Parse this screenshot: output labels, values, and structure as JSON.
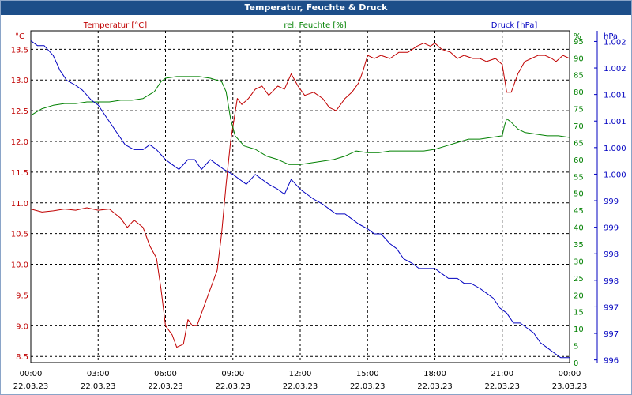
{
  "window": {
    "title": "Temperatur, Feuchte & Druck"
  },
  "chart_data": {
    "type": "line",
    "title": "Temperatur, Feuchte & Druck",
    "grid": true,
    "x_ticks": [
      {
        "time": "00:00",
        "date": "22.03.23"
      },
      {
        "time": "03:00",
        "date": "22.03.23"
      },
      {
        "time": "06:00",
        "date": "22.03.23"
      },
      {
        "time": "09:00",
        "date": "22.03.23"
      },
      {
        "time": "12:00",
        "date": "22.03.23"
      },
      {
        "time": "15:00",
        "date": "22.03.23"
      },
      {
        "time": "18:00",
        "date": "22.03.23"
      },
      {
        "time": "21:00",
        "date": "22.03.23"
      },
      {
        "time": "00:00",
        "date": "23.03.23"
      }
    ],
    "x_hours": [
      0,
      24
    ],
    "axes": {
      "temperature": {
        "label": "Temperatur [°C]",
        "unit": "°C",
        "color": "#c00000",
        "ylim": [
          8.4,
          13.8
        ],
        "ticks": [
          "8.5",
          "9.0",
          "9.5",
          "10.0",
          "10.5",
          "11.0",
          "11.5",
          "12.0",
          "12.5",
          "13.0",
          "13.5"
        ]
      },
      "humidity": {
        "label": "rel. Feuchte [%]",
        "unit": "%",
        "color": "#008000",
        "ylim": [
          0,
          98
        ],
        "ticks": [
          "0",
          "5",
          "10",
          "15",
          "20",
          "25",
          "30",
          "35",
          "40",
          "45",
          "50",
          "55",
          "60",
          "65",
          "70",
          "75",
          "80",
          "85",
          "90",
          "95"
        ]
      },
      "pressure": {
        "label": "Druck [hPa]",
        "unit": "hPa",
        "color": "#0000c0",
        "ylim": [
          995.9,
          1002.6
        ],
        "ticks": [
          "996",
          "997",
          "997",
          "998",
          "998",
          "999",
          "999",
          "1.000",
          "1.000",
          "1.001",
          "1.001",
          "1.002",
          "1.002"
        ]
      }
    },
    "series": [
      {
        "name": "Temperatur [°C]",
        "axis": "temperature",
        "color": "#c00000",
        "points": [
          [
            0,
            10.9
          ],
          [
            0.5,
            10.85
          ],
          [
            1,
            10.87
          ],
          [
            1.5,
            10.9
          ],
          [
            2,
            10.88
          ],
          [
            2.5,
            10.92
          ],
          [
            3,
            10.88
          ],
          [
            3.5,
            10.9
          ],
          [
            4,
            10.75
          ],
          [
            4.3,
            10.6
          ],
          [
            4.6,
            10.72
          ],
          [
            5,
            10.6
          ],
          [
            5.3,
            10.3
          ],
          [
            5.6,
            10.1
          ],
          [
            5.8,
            9.6
          ],
          [
            6,
            9.0
          ],
          [
            6.3,
            8.85
          ],
          [
            6.5,
            8.65
          ],
          [
            6.8,
            8.7
          ],
          [
            7,
            9.1
          ],
          [
            7.2,
            9.0
          ],
          [
            7.4,
            9.0
          ],
          [
            7.7,
            9.3
          ],
          [
            8,
            9.6
          ],
          [
            8.3,
            9.9
          ],
          [
            8.5,
            10.5
          ],
          [
            8.7,
            11.3
          ],
          [
            8.9,
            12.0
          ],
          [
            9.2,
            12.7
          ],
          [
            9.4,
            12.6
          ],
          [
            9.7,
            12.7
          ],
          [
            10,
            12.85
          ],
          [
            10.3,
            12.9
          ],
          [
            10.6,
            12.75
          ],
          [
            11,
            12.9
          ],
          [
            11.3,
            12.85
          ],
          [
            11.6,
            13.1
          ],
          [
            11.9,
            12.9
          ],
          [
            12.2,
            12.75
          ],
          [
            12.6,
            12.8
          ],
          [
            13,
            12.7
          ],
          [
            13.3,
            12.55
          ],
          [
            13.6,
            12.5
          ],
          [
            14,
            12.7
          ],
          [
            14.3,
            12.8
          ],
          [
            14.6,
            12.95
          ],
          [
            14.8,
            13.15
          ],
          [
            15,
            13.4
          ],
          [
            15.3,
            13.35
          ],
          [
            15.6,
            13.4
          ],
          [
            16,
            13.35
          ],
          [
            16.4,
            13.45
          ],
          [
            16.8,
            13.45
          ],
          [
            17.2,
            13.55
          ],
          [
            17.5,
            13.6
          ],
          [
            17.8,
            13.55
          ],
          [
            18,
            13.6
          ],
          [
            18.3,
            13.5
          ],
          [
            18.7,
            13.45
          ],
          [
            19,
            13.35
          ],
          [
            19.3,
            13.4
          ],
          [
            19.7,
            13.35
          ],
          [
            20,
            13.35
          ],
          [
            20.3,
            13.3
          ],
          [
            20.7,
            13.35
          ],
          [
            21,
            13.25
          ],
          [
            21.2,
            12.8
          ],
          [
            21.4,
            12.8
          ],
          [
            21.7,
            13.1
          ],
          [
            22,
            13.3
          ],
          [
            22.3,
            13.35
          ],
          [
            22.6,
            13.4
          ],
          [
            22.9,
            13.4
          ],
          [
            23.2,
            13.35
          ],
          [
            23.4,
            13.3
          ],
          [
            23.7,
            13.4
          ],
          [
            24,
            13.35
          ]
        ]
      },
      {
        "name": "rel. Feuchte [%]",
        "axis": "humidity",
        "color": "#008000",
        "points": [
          [
            0,
            73
          ],
          [
            0.5,
            75
          ],
          [
            1,
            76
          ],
          [
            1.5,
            76.5
          ],
          [
            2,
            76.5
          ],
          [
            2.5,
            77
          ],
          [
            3,
            77
          ],
          [
            3.5,
            77
          ],
          [
            4,
            77.5
          ],
          [
            4.5,
            77.5
          ],
          [
            5,
            78
          ],
          [
            5.5,
            80
          ],
          [
            5.8,
            83
          ],
          [
            6,
            84
          ],
          [
            6.5,
            84.5
          ],
          [
            7,
            84.5
          ],
          [
            7.5,
            84.5
          ],
          [
            8,
            84
          ],
          [
            8.5,
            83
          ],
          [
            8.7,
            80
          ],
          [
            8.9,
            72
          ],
          [
            9.1,
            67
          ],
          [
            9.5,
            64
          ],
          [
            10,
            63
          ],
          [
            10.5,
            61
          ],
          [
            11,
            60
          ],
          [
            11.5,
            58.5
          ],
          [
            12,
            58.5
          ],
          [
            12.5,
            59
          ],
          [
            13,
            59.5
          ],
          [
            13.5,
            60
          ],
          [
            14,
            61
          ],
          [
            14.5,
            62.5
          ],
          [
            15,
            62
          ],
          [
            15.5,
            62
          ],
          [
            16,
            62.5
          ],
          [
            16.5,
            62.5
          ],
          [
            17,
            62.5
          ],
          [
            17.5,
            62.5
          ],
          [
            18,
            63
          ],
          [
            18.5,
            64
          ],
          [
            19,
            65
          ],
          [
            19.5,
            66
          ],
          [
            20,
            66
          ],
          [
            20.5,
            66.5
          ],
          [
            21,
            67
          ],
          [
            21.1,
            70
          ],
          [
            21.2,
            72
          ],
          [
            21.4,
            71
          ],
          [
            21.7,
            69
          ],
          [
            22,
            68
          ],
          [
            22.5,
            67.5
          ],
          [
            23,
            67
          ],
          [
            23.5,
            67
          ],
          [
            24,
            66.5
          ]
        ]
      },
      {
        "name": "Druck [hPa]",
        "axis": "pressure",
        "color": "#0000c0",
        "points": [
          [
            0,
            1002.4
          ],
          [
            0.3,
            1002.3
          ],
          [
            0.6,
            1002.3
          ],
          [
            1,
            1002.1
          ],
          [
            1.3,
            1001.8
          ],
          [
            1.6,
            1001.6
          ],
          [
            2,
            1001.5
          ],
          [
            2.3,
            1001.4
          ],
          [
            2.7,
            1001.2
          ],
          [
            3,
            1001.1
          ],
          [
            3.3,
            1000.9
          ],
          [
            3.6,
            1000.7
          ],
          [
            3.9,
            1000.5
          ],
          [
            4.2,
            1000.3
          ],
          [
            4.6,
            1000.2
          ],
          [
            5,
            1000.2
          ],
          [
            5.3,
            1000.3
          ],
          [
            5.6,
            1000.2
          ],
          [
            6,
            1000.0
          ],
          [
            6.3,
            999.9
          ],
          [
            6.6,
            999.8
          ],
          [
            7,
            1000.0
          ],
          [
            7.3,
            1000.0
          ],
          [
            7.6,
            999.8
          ],
          [
            8,
            1000.0
          ],
          [
            8.3,
            999.9
          ],
          [
            8.6,
            999.8
          ],
          [
            9,
            999.7
          ],
          [
            9.3,
            999.6
          ],
          [
            9.6,
            999.5
          ],
          [
            10,
            999.7
          ],
          [
            10.3,
            999.6
          ],
          [
            10.6,
            999.5
          ],
          [
            11,
            999.4
          ],
          [
            11.3,
            999.3
          ],
          [
            11.6,
            999.6
          ],
          [
            12,
            999.4
          ],
          [
            12.3,
            999.3
          ],
          [
            12.6,
            999.2
          ],
          [
            13,
            999.1
          ],
          [
            13.3,
            999.0
          ],
          [
            13.6,
            998.9
          ],
          [
            14,
            998.9
          ],
          [
            14.3,
            998.8
          ],
          [
            14.6,
            998.7
          ],
          [
            15,
            998.6
          ],
          [
            15.3,
            998.5
          ],
          [
            15.6,
            998.5
          ],
          [
            16,
            998.3
          ],
          [
            16.3,
            998.2
          ],
          [
            16.6,
            998.0
          ],
          [
            17,
            997.9
          ],
          [
            17.3,
            997.8
          ],
          [
            17.6,
            997.8
          ],
          [
            18,
            997.8
          ],
          [
            18.3,
            997.7
          ],
          [
            18.6,
            997.6
          ],
          [
            19,
            997.6
          ],
          [
            19.3,
            997.5
          ],
          [
            19.6,
            997.5
          ],
          [
            20,
            997.4
          ],
          [
            20.3,
            997.3
          ],
          [
            20.6,
            997.2
          ],
          [
            20.9,
            997.0
          ],
          [
            21.2,
            996.9
          ],
          [
            21.5,
            996.7
          ],
          [
            21.8,
            996.7
          ],
          [
            22.1,
            996.6
          ],
          [
            22.4,
            996.5
          ],
          [
            22.7,
            996.3
          ],
          [
            23,
            996.2
          ],
          [
            23.3,
            996.1
          ],
          [
            23.6,
            996.0
          ],
          [
            24,
            996.0
          ]
        ]
      }
    ]
  }
}
